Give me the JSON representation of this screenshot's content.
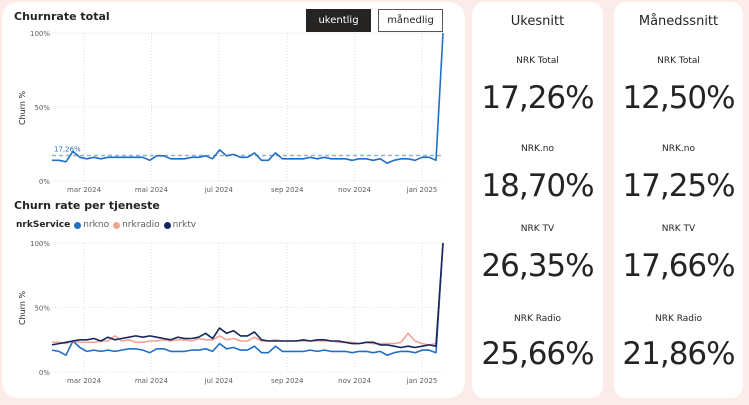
{
  "controls": {
    "weekly_label": "ukentlig",
    "monthly_label": "månedlig"
  },
  "total_chart": {
    "title": "Churnrate total",
    "ylabel": "Churn %",
    "y_ticks": [
      "100%",
      "50%",
      "0%"
    ],
    "x_ticks": [
      "mar 2024",
      "mai 2024",
      "jul 2024",
      "sep 2024",
      "nov 2024",
      "jan 2025"
    ],
    "average_label": "17,26%"
  },
  "service_chart": {
    "title": "Churn rate per tjeneste",
    "ylabel": "Churn %",
    "y_ticks": [
      "100%",
      "50%",
      "0%"
    ],
    "x_ticks": [
      "mar 2024",
      "mai 2024",
      "jul 2024",
      "sep 2024",
      "nov 2024",
      "jan 2025"
    ],
    "legend_title": "nrkService"
  },
  "colors": {
    "nrkno": "#1f6fc5",
    "nrkradio": "#f4a294",
    "nrktv": "#14285f",
    "total": "#1f6fc5",
    "average": "#8fb3d9"
  },
  "chart_data": [
    {
      "type": "line",
      "title": "Churnrate total",
      "ylabel": "Churn %",
      "ylim": [
        0,
        100
      ],
      "x_start": "2024-02-01",
      "x_end": "2025-01-20",
      "grid": true,
      "average_line": 17.26,
      "series": [
        {
          "values": [
            14,
            14,
            13,
            20,
            16,
            15,
            16,
            15,
            16,
            16,
            16,
            16,
            16,
            16,
            14,
            17,
            17,
            15,
            15,
            15,
            16,
            16,
            17,
            15,
            21,
            17,
            18,
            16,
            16,
            19,
            14,
            14,
            19,
            15,
            15,
            15,
            15,
            16,
            15,
            16,
            15,
            15,
            15,
            14,
            15,
            15,
            14,
            15,
            12,
            14,
            15,
            15,
            14,
            16,
            16,
            14,
            100
          ]
        }
      ]
    },
    {
      "type": "line",
      "title": "Churn rate per tjeneste",
      "ylabel": "Churn %",
      "ylim": [
        0,
        100
      ],
      "x_start": "2024-02-01",
      "x_end": "2025-01-20",
      "grid": true,
      "legend_placement": "top-left",
      "series": [
        {
          "name": "nrkno",
          "values": [
            17,
            16,
            13,
            24,
            19,
            16,
            17,
            16,
            17,
            16,
            17,
            18,
            18,
            17,
            15,
            18,
            18,
            16,
            16,
            16,
            17,
            17,
            18,
            16,
            22,
            18,
            19,
            17,
            17,
            20,
            15,
            15,
            20,
            16,
            16,
            16,
            16,
            17,
            16,
            17,
            16,
            16,
            16,
            15,
            16,
            16,
            15,
            16,
            13,
            15,
            16,
            16,
            15,
            17,
            17,
            15,
            100
          ]
        },
        {
          "name": "nrkradio",
          "values": [
            23,
            23,
            22,
            24,
            23,
            23,
            23,
            24,
            24,
            28,
            24,
            25,
            23,
            23,
            24,
            24,
            25,
            24,
            25,
            25,
            24,
            26,
            25,
            25,
            28,
            25,
            26,
            24,
            24,
            27,
            24,
            24,
            25,
            24,
            24,
            24,
            24,
            24,
            24,
            24,
            24,
            23,
            23,
            23,
            22,
            23,
            22,
            22,
            22,
            22,
            23,
            30,
            24,
            22,
            21,
            22,
            100
          ]
        },
        {
          "name": "nrktv",
          "values": [
            21,
            22,
            23,
            24,
            25,
            25,
            26,
            24,
            27,
            25,
            26,
            27,
            28,
            27,
            28,
            27,
            26,
            25,
            27,
            26,
            26,
            27,
            30,
            26,
            34,
            30,
            32,
            28,
            28,
            31,
            25,
            24,
            24,
            24,
            24,
            24,
            25,
            24,
            25,
            25,
            24,
            24,
            23,
            22,
            22,
            23,
            23,
            21,
            21,
            20,
            19,
            20,
            19,
            20,
            21,
            20,
            100
          ]
        }
      ]
    }
  ],
  "weekly": {
    "header": "Ukesnitt",
    "items": [
      {
        "label": "NRK Total",
        "value": "17,26%"
      },
      {
        "label": "NRK.no",
        "value": "18,70%"
      },
      {
        "label": "NRK TV",
        "value": "26,35%"
      },
      {
        "label": "NRK Radio",
        "value": "25,66%"
      }
    ]
  },
  "monthly": {
    "header": "Månedssnitt",
    "items": [
      {
        "label": "NRK Total",
        "value": "12,50%"
      },
      {
        "label": "NRK.no",
        "value": "17,25%"
      },
      {
        "label": "NRK TV",
        "value": "17,66%"
      },
      {
        "label": "NRK Radio",
        "value": "21,86%"
      }
    ]
  }
}
